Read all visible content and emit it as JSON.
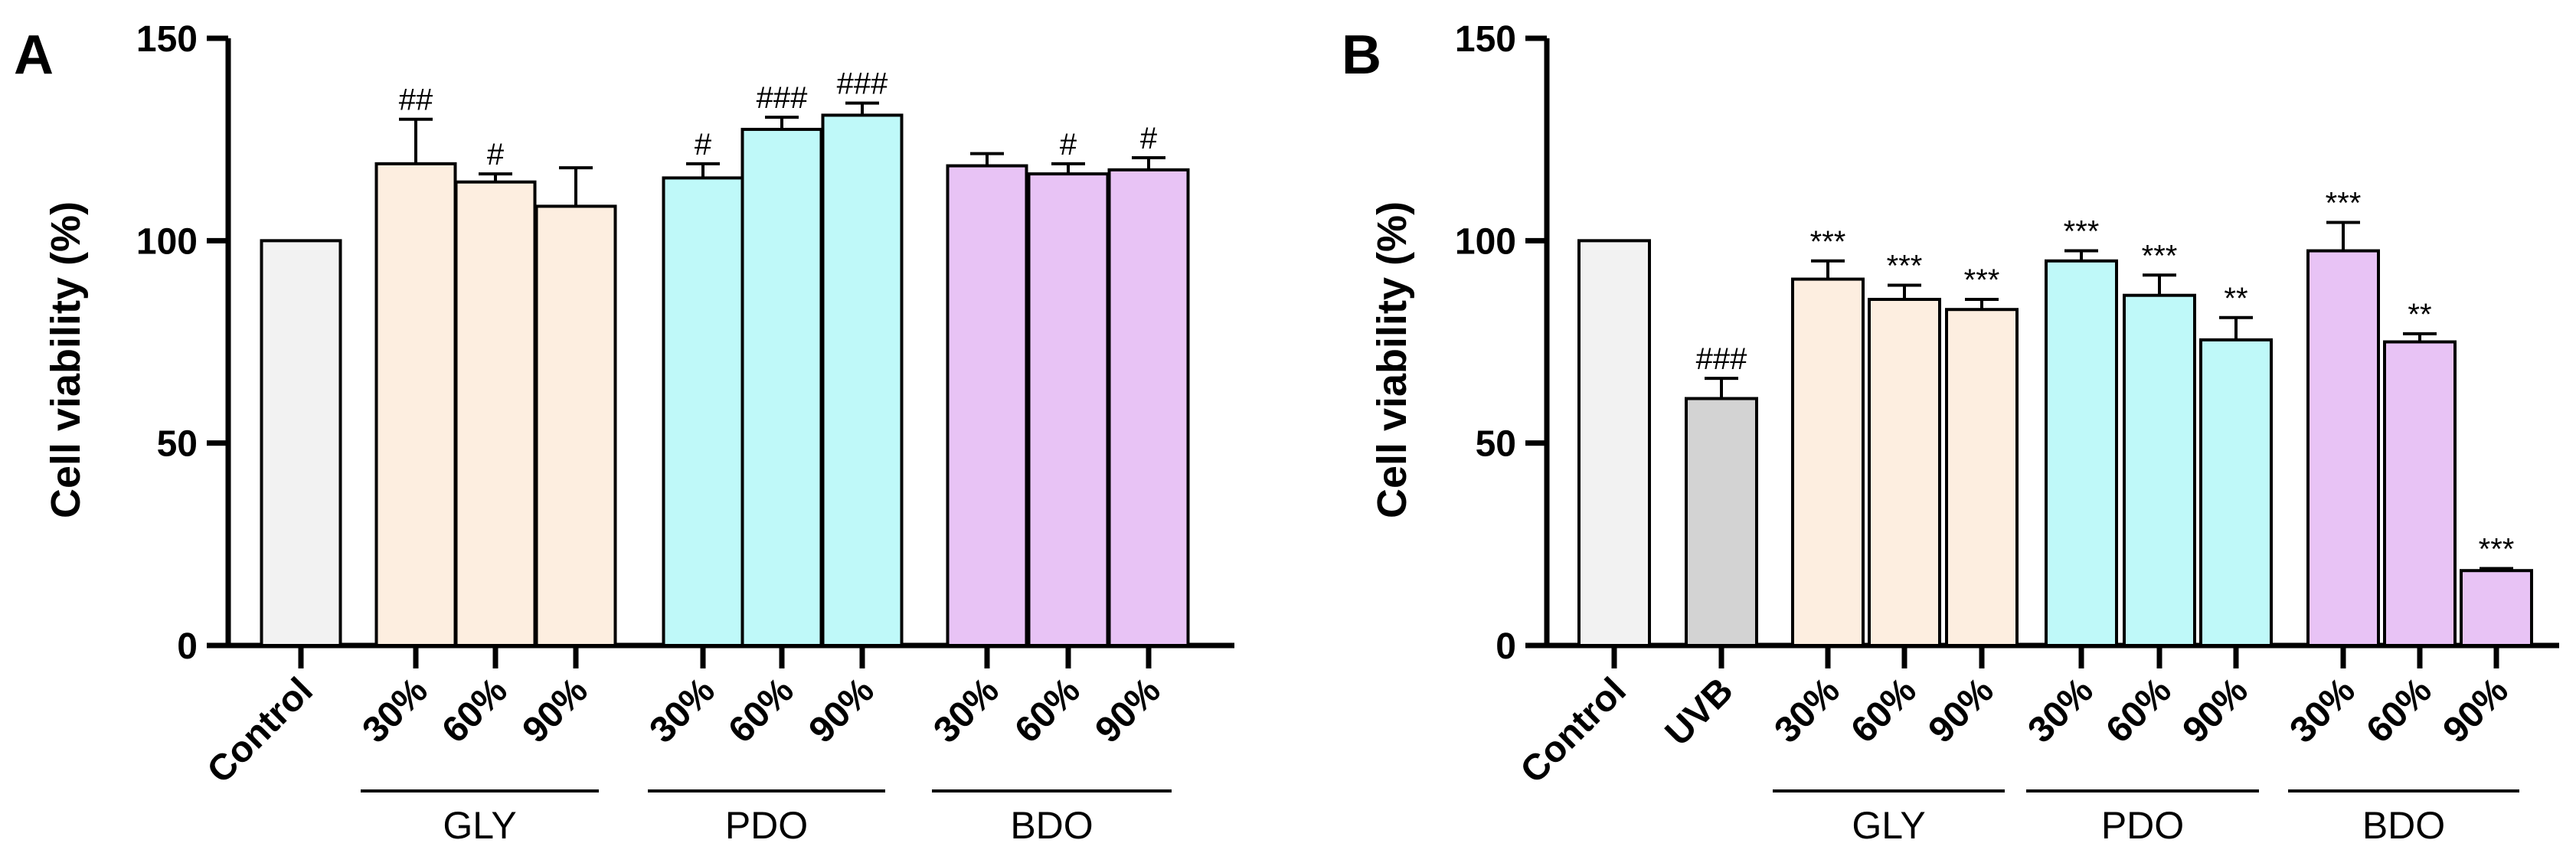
{
  "colors": {
    "control": "#f2f2f2",
    "uvb": "#d3d3d3",
    "gly": "#fdeee0",
    "pdo": "#bff9f9",
    "bdo": "#e8c3f5",
    "stroke": "#000000"
  },
  "chart_data": [
    {
      "panel": "A",
      "type": "bar",
      "ylabel": "Cell viability (%)",
      "ylim": [
        0,
        150
      ],
      "yticks": [
        "0",
        "50",
        "100",
        "150"
      ],
      "categories": [
        "Control",
        "30%",
        "60%",
        "90%",
        "30%",
        "60%",
        "90%",
        "30%",
        "60%",
        "90%"
      ],
      "color_keys": [
        "control",
        "gly",
        "gly",
        "gly",
        "pdo",
        "pdo",
        "pdo",
        "bdo",
        "bdo",
        "bdo"
      ],
      "values": [
        100,
        119,
        114.5,
        108.5,
        115.5,
        127.5,
        131,
        118.5,
        116.5,
        117.5
      ],
      "errors": [
        0,
        11,
        2,
        9.5,
        3.5,
        3,
        3,
        3,
        2.5,
        3
      ],
      "annotations": [
        "",
        "##",
        "#",
        "",
        "#",
        "###",
        "###",
        "",
        "#",
        "#"
      ],
      "groups": [
        {
          "label": "GLY",
          "from": 1,
          "to": 3
        },
        {
          "label": "PDO",
          "from": 4,
          "to": 6
        },
        {
          "label": "BDO",
          "from": 7,
          "to": 9
        }
      ]
    },
    {
      "panel": "B",
      "type": "bar",
      "ylabel": "Cell viability (%)",
      "ylim": [
        0,
        150
      ],
      "yticks": [
        "0",
        "50",
        "100",
        "150"
      ],
      "categories": [
        "Control",
        "UVB",
        "30%",
        "60%",
        "90%",
        "30%",
        "60%",
        "90%",
        "30%",
        "60%",
        "90%"
      ],
      "color_keys": [
        "control",
        "uvb",
        "gly",
        "gly",
        "gly",
        "pdo",
        "pdo",
        "pdo",
        "bdo",
        "bdo",
        "bdo"
      ],
      "values": [
        100,
        61,
        90.5,
        85.5,
        83,
        95,
        86.5,
        75.5,
        97.5,
        75,
        18.5
      ],
      "errors": [
        0,
        5,
        4.5,
        3.5,
        2.5,
        2.5,
        5,
        5.5,
        7,
        2,
        0.5
      ],
      "annotations": [
        "",
        "###",
        "***",
        "***",
        "***",
        "***",
        "***",
        "**",
        "***",
        "**",
        "***"
      ],
      "groups": [
        {
          "label": "GLY",
          "from": 2,
          "to": 4
        },
        {
          "label": "PDO",
          "from": 5,
          "to": 7
        },
        {
          "label": "BDO",
          "from": 8,
          "to": 10
        }
      ]
    }
  ]
}
